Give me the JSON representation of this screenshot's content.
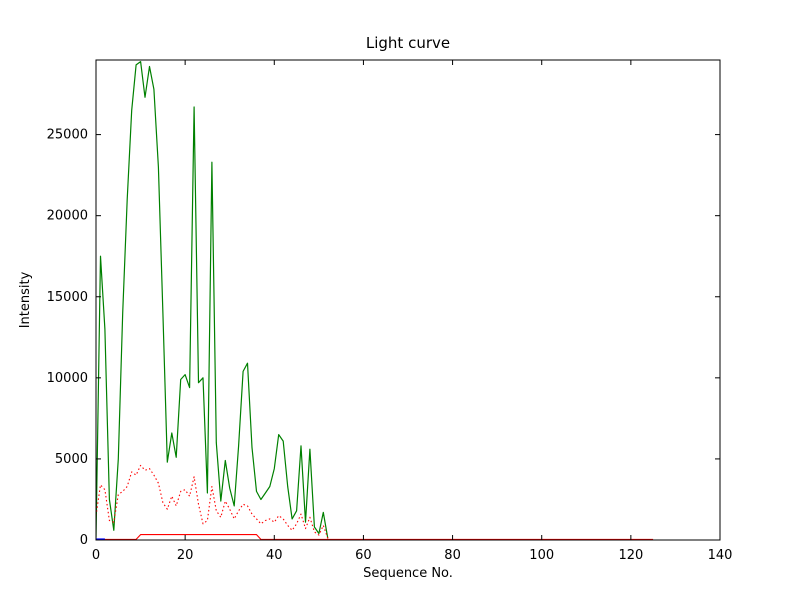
{
  "chart_data": {
    "type": "line",
    "title": "Light curve",
    "xlabel": "Sequence No.",
    "ylabel": "Intensity",
    "xlim": [
      0,
      140
    ],
    "ylim": [
      0,
      29600
    ],
    "xticks": [
      0,
      20,
      40,
      60,
      80,
      100,
      120,
      140
    ],
    "yticks": [
      0,
      5000,
      10000,
      15000,
      20000,
      25000
    ],
    "grid": false,
    "background": "#ffffff",
    "frame_color": "#000000",
    "series": [
      {
        "name": "green-solid",
        "color": "#008000",
        "style": "solid",
        "width": 1.2,
        "points": [
          [
            0,
            150
          ],
          [
            1,
            17500
          ],
          [
            2,
            13000
          ],
          [
            3,
            2500
          ],
          [
            4,
            600
          ],
          [
            5,
            5000
          ],
          [
            6,
            14000
          ],
          [
            7,
            21000
          ],
          [
            8,
            26500
          ],
          [
            9,
            29300
          ],
          [
            10,
            29500
          ],
          [
            11,
            27300
          ],
          [
            12,
            29200
          ],
          [
            13,
            27800
          ],
          [
            14,
            23000
          ],
          [
            15,
            14000
          ],
          [
            16,
            4800
          ],
          [
            17,
            6600
          ],
          [
            18,
            5100
          ],
          [
            19,
            9900
          ],
          [
            20,
            10200
          ],
          [
            21,
            9400
          ],
          [
            22,
            26700
          ],
          [
            23,
            9700
          ],
          [
            24,
            10000
          ],
          [
            25,
            2900
          ],
          [
            26,
            23300
          ],
          [
            27,
            6000
          ],
          [
            28,
            2400
          ],
          [
            29,
            4900
          ],
          [
            30,
            3200
          ],
          [
            31,
            2100
          ],
          [
            32,
            5800
          ],
          [
            33,
            10400
          ],
          [
            34,
            10900
          ],
          [
            35,
            5700
          ],
          [
            36,
            3000
          ],
          [
            37,
            2500
          ],
          [
            38,
            2900
          ],
          [
            39,
            3300
          ],
          [
            40,
            4400
          ],
          [
            41,
            6500
          ],
          [
            42,
            6100
          ],
          [
            43,
            3300
          ],
          [
            44,
            1300
          ],
          [
            45,
            1800
          ],
          [
            46,
            5800
          ],
          [
            47,
            1100
          ],
          [
            48,
            5600
          ],
          [
            49,
            800
          ],
          [
            50,
            400
          ],
          [
            51,
            1700
          ],
          [
            52,
            100
          ]
        ]
      },
      {
        "name": "red-dotted",
        "color": "#ff0000",
        "style": "dotted",
        "width": 1.1,
        "points": [
          [
            0,
            1500
          ],
          [
            1,
            3400
          ],
          [
            2,
            3100
          ],
          [
            3,
            1200
          ],
          [
            4,
            1100
          ],
          [
            5,
            2800
          ],
          [
            6,
            3000
          ],
          [
            7,
            3300
          ],
          [
            8,
            4200
          ],
          [
            9,
            4000
          ],
          [
            10,
            4600
          ],
          [
            11,
            4300
          ],
          [
            12,
            4400
          ],
          [
            13,
            4000
          ],
          [
            14,
            3500
          ],
          [
            15,
            2300
          ],
          [
            16,
            1900
          ],
          [
            17,
            2700
          ],
          [
            18,
            2100
          ],
          [
            19,
            3000
          ],
          [
            20,
            3100
          ],
          [
            21,
            2700
          ],
          [
            22,
            3900
          ],
          [
            23,
            2200
          ],
          [
            24,
            1000
          ],
          [
            25,
            1200
          ],
          [
            26,
            3300
          ],
          [
            27,
            1800
          ],
          [
            28,
            1400
          ],
          [
            29,
            2400
          ],
          [
            30,
            1900
          ],
          [
            31,
            1300
          ],
          [
            32,
            1800
          ],
          [
            33,
            2200
          ],
          [
            34,
            2100
          ],
          [
            35,
            1600
          ],
          [
            36,
            1300
          ],
          [
            37,
            1000
          ],
          [
            38,
            1200
          ],
          [
            39,
            1300
          ],
          [
            40,
            1100
          ],
          [
            41,
            1500
          ],
          [
            42,
            1300
          ],
          [
            43,
            900
          ],
          [
            44,
            600
          ],
          [
            45,
            1000
          ],
          [
            46,
            1600
          ],
          [
            47,
            700
          ],
          [
            48,
            1400
          ],
          [
            49,
            500
          ],
          [
            50,
            300
          ],
          [
            51,
            900
          ],
          [
            52,
            100
          ]
        ]
      },
      {
        "name": "red-solid",
        "color": "#ff0000",
        "style": "solid",
        "width": 1.1,
        "points": [
          [
            0,
            40
          ],
          [
            9,
            40
          ],
          [
            10,
            330
          ],
          [
            36,
            330
          ],
          [
            37,
            40
          ],
          [
            125,
            40
          ]
        ]
      },
      {
        "name": "blue-solid",
        "color": "#0000ff",
        "style": "solid",
        "width": 1.2,
        "points": [
          [
            0,
            60
          ],
          [
            2,
            60
          ]
        ]
      }
    ]
  }
}
